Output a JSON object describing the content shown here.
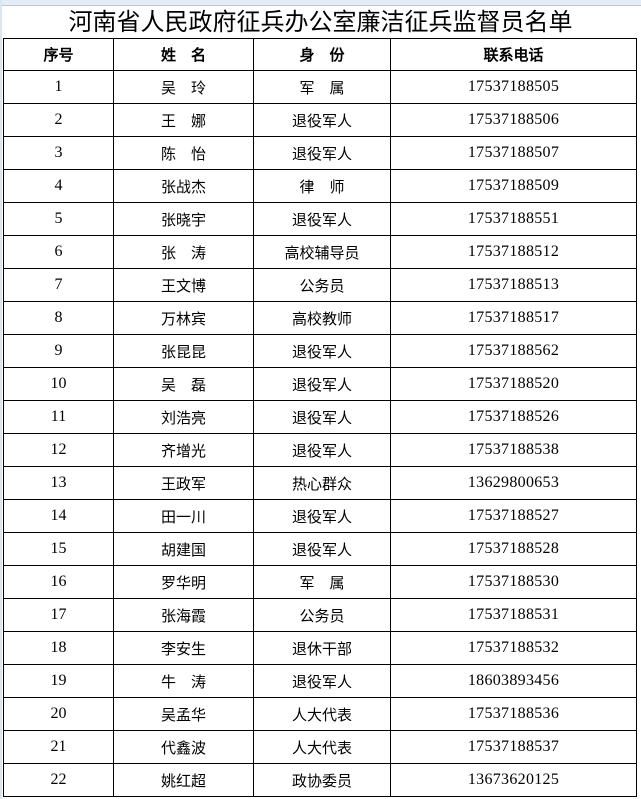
{
  "title": "河南省人民政府征兵办公室廉洁征兵监督员名单",
  "headers": [
    "序号",
    "姓　名",
    "身　份",
    "联系电话"
  ],
  "rows": [
    [
      "1",
      "吴　玲",
      "军　属",
      "17537188505"
    ],
    [
      "2",
      "王　娜",
      "退役军人",
      "17537188506"
    ],
    [
      "3",
      "陈　怡",
      "退役军人",
      "17537188507"
    ],
    [
      "4",
      "张战杰",
      "律　师",
      "17537188509"
    ],
    [
      "5",
      "张晓宇",
      "退役军人",
      "17537188551"
    ],
    [
      "6",
      "张　涛",
      "高校辅导员",
      "17537188512"
    ],
    [
      "7",
      "王文博",
      "公务员",
      "17537188513"
    ],
    [
      "8",
      "万林宾",
      "高校教师",
      "17537188517"
    ],
    [
      "9",
      "张昆昆",
      "退役军人",
      "17537188562"
    ],
    [
      "10",
      "吴　磊",
      "退役军人",
      "17537188520"
    ],
    [
      "11",
      "刘浩亮",
      "退役军人",
      "17537188526"
    ],
    [
      "12",
      "齐增光",
      "退役军人",
      "17537188538"
    ],
    [
      "13",
      "王政军",
      "热心群众",
      "13629800653"
    ],
    [
      "14",
      "田一川",
      "退役军人",
      "17537188527"
    ],
    [
      "15",
      "胡建国",
      "退役军人",
      "17537188528"
    ],
    [
      "16",
      "罗华明",
      "军　属",
      "17537188530"
    ],
    [
      "17",
      "张海霞",
      "公务员",
      "17537188531"
    ],
    [
      "18",
      "李安生",
      "退休干部",
      "17537188532"
    ],
    [
      "19",
      "牛　涛",
      "退役军人",
      "18603893456"
    ],
    [
      "20",
      "吴孟华",
      "人大代表",
      "17537188536"
    ],
    [
      "21",
      "代鑫波",
      "人大代表",
      "17537188537"
    ],
    [
      "22",
      "姚红超",
      "政协委员",
      "13673620125"
    ]
  ]
}
